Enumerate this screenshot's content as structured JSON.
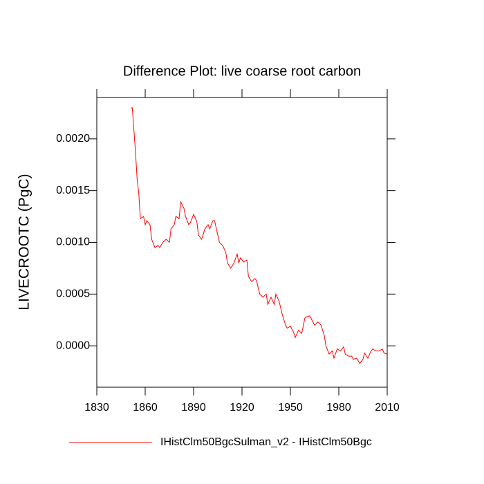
{
  "chart_data": {
    "type": "line",
    "title": "Difference Plot: live coarse root carbon",
    "y_label": "LIVECROOTC  (PgC)",
    "x": [
      1851,
      1852,
      1854,
      1855,
      1856,
      1857,
      1859,
      1860,
      1861,
      1863,
      1864,
      1866,
      1868,
      1869,
      1871,
      1873,
      1875,
      1876,
      1878,
      1879,
      1881,
      1882,
      1884,
      1885,
      1887,
      1888,
      1890,
      1892,
      1893,
      1895,
      1897,
      1899,
      1900,
      1902,
      1903,
      1905,
      1906,
      1908,
      1910,
      1911,
      1913,
      1915,
      1917,
      1918,
      1919,
      1921,
      1923,
      1924,
      1926,
      1928,
      1929,
      1931,
      1933,
      1935,
      1936,
      1938,
      1940,
      1941,
      1943,
      1945,
      1947,
      1948,
      1950,
      1952,
      1953,
      1955,
      1957,
      1959,
      1960,
      1962,
      1964,
      1965,
      1967,
      1969,
      1971,
      1972,
      1974,
      1976,
      1977,
      1979,
      1981,
      1983,
      1984,
      1986,
      1988,
      1989,
      1991,
      1993,
      1995,
      1996,
      1998,
      2000,
      2001,
      2003,
      2005,
      2007,
      2008,
      2010
    ],
    "series": [
      {
        "name": "IHistClm50BgcSulman_v2 - IHistClm50Bgc",
        "color": "#ff0000",
        "values": [
          0.0023,
          0.0023,
          0.00187,
          0.00161,
          0.00148,
          0.00123,
          0.00125,
          0.00117,
          0.00121,
          0.00117,
          0.00103,
          0.00095,
          0.00097,
          0.00095,
          0.001,
          0.00103,
          0.001,
          0.00113,
          0.00117,
          0.00125,
          0.00123,
          0.00139,
          0.00133,
          0.00125,
          0.00117,
          0.00119,
          0.00127,
          0.0012,
          0.00107,
          0.00103,
          0.00113,
          0.00117,
          0.00113,
          0.00121,
          0.00121,
          0.00107,
          0.001,
          0.00097,
          0.0009,
          0.0008,
          0.00075,
          0.0008,
          0.00089,
          0.0008,
          0.00085,
          0.00081,
          0.00083,
          0.00067,
          0.00062,
          0.00065,
          0.00063,
          0.0005,
          0.00047,
          0.0005,
          0.0004,
          0.00047,
          0.0004,
          0.0005,
          0.00043,
          0.0003,
          0.0002,
          0.00017,
          0.00019,
          0.00013,
          8e-05,
          0.00015,
          0.00012,
          0.00027,
          0.00028,
          0.00029,
          0.00023,
          0.0002,
          0.00023,
          0.0002,
          0.0001,
          0.0,
          -8e-05,
          -5e-05,
          -0.00012,
          -3e-05,
          -5e-05,
          -1e-05,
          -8e-05,
          -0.0001,
          -0.0001,
          -0.00013,
          -0.00012,
          -0.00017,
          -0.00013,
          -7e-05,
          -0.00012,
          -5e-05,
          -3e-05,
          -5e-05,
          -5e-05,
          -3e-05,
          -7e-05,
          -8e-05
        ]
      }
    ],
    "xlim": [
      1830,
      2010
    ],
    "xticks": [
      1830,
      1860,
      1890,
      1920,
      1950,
      1980,
      2010
    ],
    "ylim": [
      -0.0004,
      0.0024
    ],
    "yticks": [
      {
        "value": 0,
        "label": "0.0000"
      },
      {
        "value": 0.0005,
        "label": "0.0005"
      },
      {
        "value": 0.001,
        "label": "0.0010"
      },
      {
        "value": 0.0015,
        "label": "0.0015"
      },
      {
        "value": 0.002,
        "label": "0.0020"
      }
    ],
    "legend": "bottom"
  }
}
